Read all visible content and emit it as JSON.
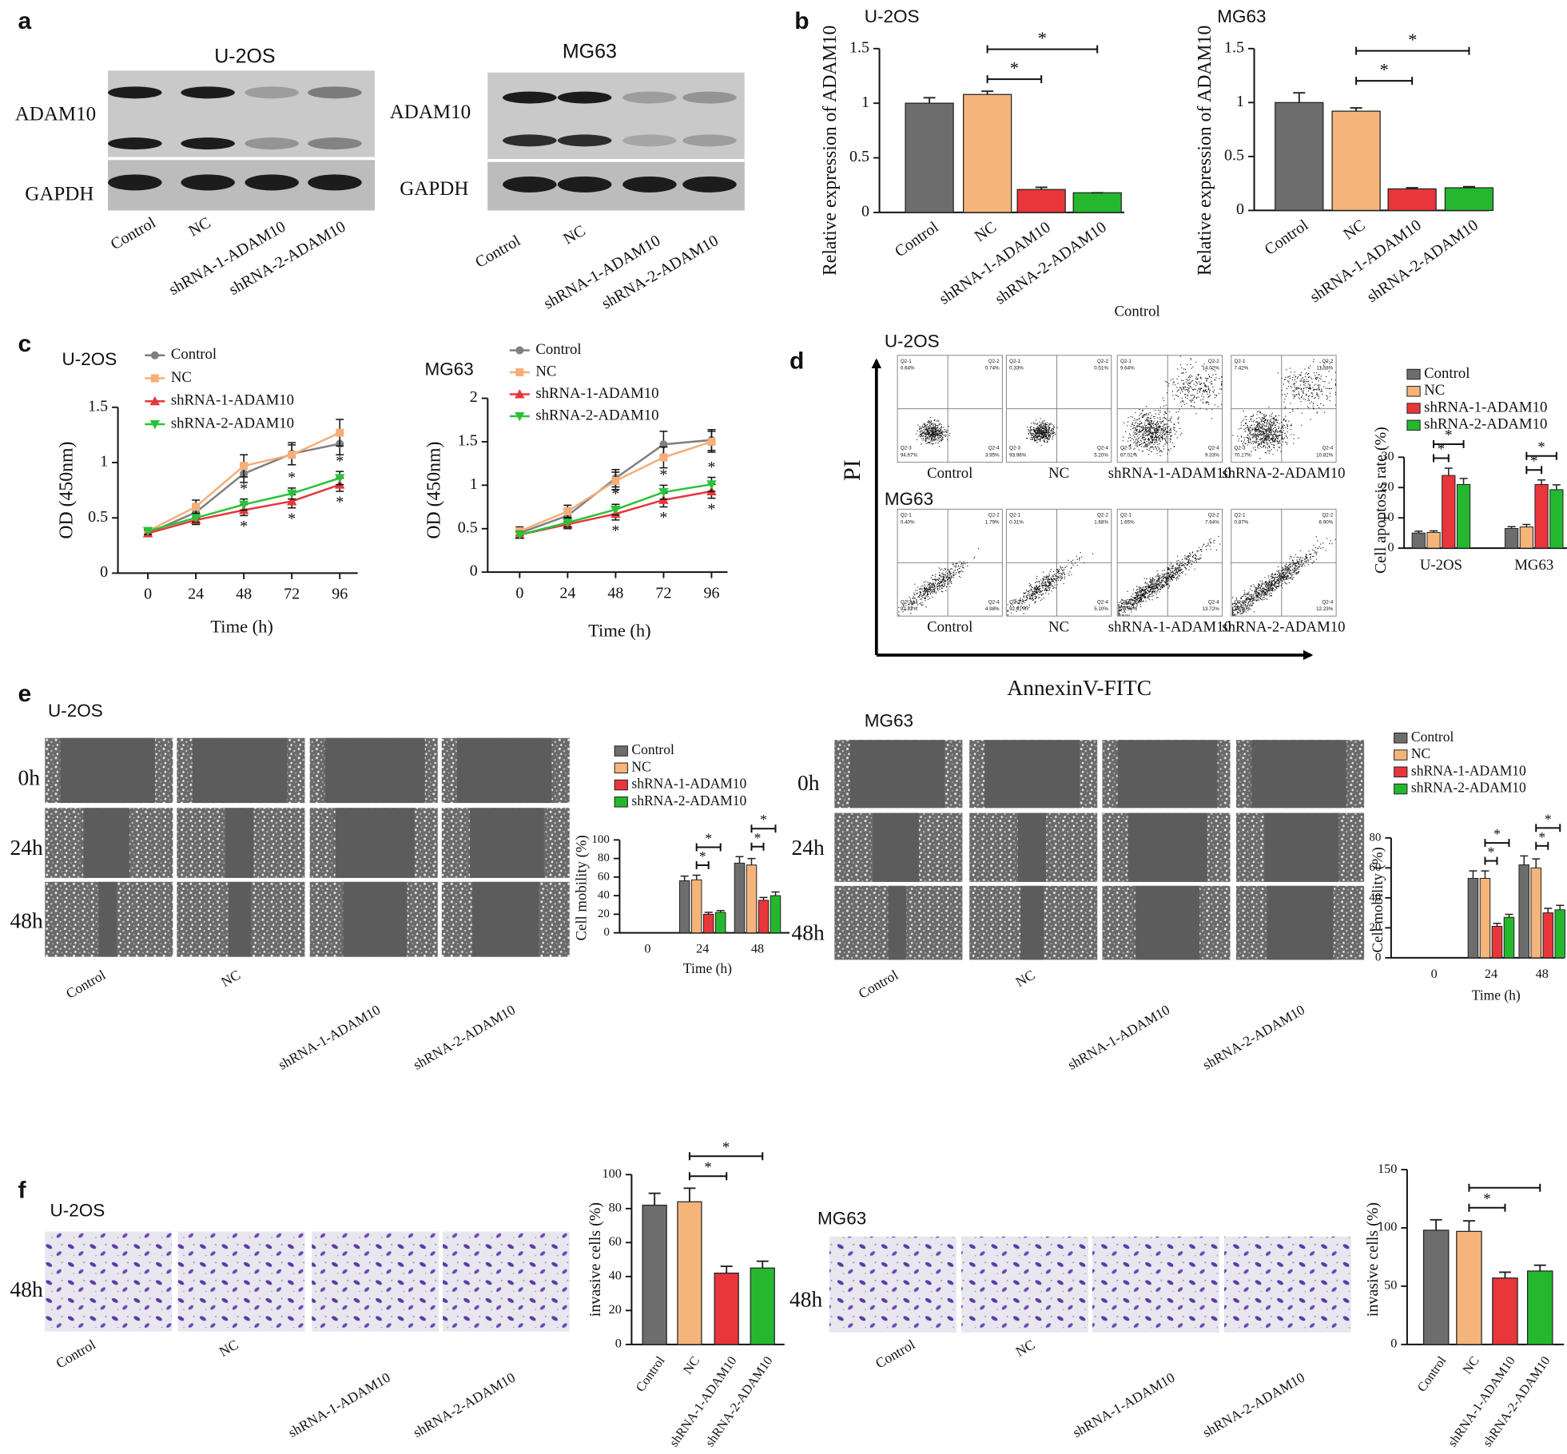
{
  "panel_labels": [
    "a",
    "b",
    "c",
    "d",
    "e",
    "f"
  ],
  "western_blot": [
    {
      "title": "U-2OS",
      "proteins": [
        "ADAM10",
        "GAPDH"
      ],
      "lanes": [
        "Control",
        "NC",
        "shRNA-1-ADAM10",
        "shRNA-2-ADAM10"
      ]
    },
    {
      "title": "MG63",
      "proteins": [
        "ADAM10",
        "GAPDH"
      ],
      "lanes": [
        "Control",
        "NC",
        "shRNA-1-ADAM10",
        "shRNA-2-ADAM10"
      ]
    }
  ],
  "stray_label": "Control",
  "flow_cytometry": {
    "y_label": "PI",
    "x_label": "AnnexinV-FITC",
    "rows": [
      {
        "title": "U-2OS",
        "plots": [
          {
            "label": "Control",
            "quadrants": [
              {
                "name": "Q2-1",
                "value": "0.64%"
              },
              {
                "name": "Q2-2",
                "value": "0.74%"
              },
              {
                "name": "Q2-3",
                "value": "94.67%"
              },
              {
                "name": "Q2-4",
                "value": "3.95%"
              }
            ]
          },
          {
            "label": "NC",
            "quadrants": [
              {
                "name": "Q2-1",
                "value": "0.33%"
              },
              {
                "name": "Q2-2",
                "value": "0.51%"
              },
              {
                "name": "Q2-3",
                "value": "93.96%"
              },
              {
                "name": "Q2-4",
                "value": "5.20%"
              }
            ]
          },
          {
            "label": "shRNA-1-ADAM10",
            "quadrants": [
              {
                "name": "Q2-1",
                "value": "9.64%"
              },
              {
                "name": "Q2-2",
                "value": "14.02%"
              },
              {
                "name": "Q2-3",
                "value": "67.01%"
              },
              {
                "name": "Q2-4",
                "value": "9.33%"
              }
            ]
          },
          {
            "label": "shRNA-2-ADAM10",
            "quadrants": [
              {
                "name": "Q2-1",
                "value": "7.42%"
              },
              {
                "name": "Q2-2",
                "value": "11.58%"
              },
              {
                "name": "Q2-3",
                "value": "70.17%"
              },
              {
                "name": "Q2-4",
                "value": "10.82%"
              }
            ]
          }
        ]
      },
      {
        "title": "MG63",
        "plots": [
          {
            "label": "Control",
            "quadrants": [
              {
                "name": "Q2-1",
                "value": "0.40%"
              },
              {
                "name": "Q2-2",
                "value": "1.79%"
              },
              {
                "name": "Q2-3",
                "value": "92.82%"
              },
              {
                "name": "Q2-4",
                "value": "4.98%"
              }
            ]
          },
          {
            "label": "NC",
            "quadrants": [
              {
                "name": "Q2-1",
                "value": "0.31%"
              },
              {
                "name": "Q2-2",
                "value": "1.68%"
              },
              {
                "name": "Q2-3",
                "value": "92.91%"
              },
              {
                "name": "Q2-4",
                "value": "5.10%"
              }
            ]
          },
          {
            "label": "shRNA-1-ADAM10",
            "quadrants": [
              {
                "name": "Q2-1",
                "value": "1.65%"
              },
              {
                "name": "Q2-2",
                "value": "7.64%"
              },
              {
                "name": "Q2-3",
                "value": "76.98%"
              },
              {
                "name": "Q2-4",
                "value": "13.72%"
              }
            ]
          },
          {
            "label": "shRNA-2-ADAM10",
            "quadrants": [
              {
                "name": "Q2-1",
                "value": "0.87%"
              },
              {
                "name": "Q2-2",
                "value": "6.90%"
              },
              {
                "name": "Q2-3",
                "value": "79.90%"
              },
              {
                "name": "Q2-4",
                "value": "12.23%"
              }
            ]
          }
        ]
      }
    ]
  },
  "wound_healing": [
    {
      "title": "U-2OS",
      "times": [
        "0h",
        "24h",
        "48h"
      ],
      "lanes": [
        "Control",
        "NC",
        "shRNA-1-ADAM10",
        "shRNA-2-ADAM10"
      ]
    },
    {
      "title": "MG63",
      "times": [
        "0h",
        "24h",
        "48h"
      ],
      "lanes": [
        "Control",
        "NC",
        "shRNA-1-ADAM10",
        "shRNA-2-ADAM10"
      ]
    }
  ],
  "transwell": [
    {
      "title": "U-2OS",
      "time": "48h",
      "lanes": [
        "Control",
        "NC",
        "shRNA-1-ADAM10",
        "shRNA-2-ADAM10"
      ]
    },
    {
      "title": "MG63",
      "time": "48h",
      "lanes": [
        "Control",
        "NC",
        "shRNA-1-ADAM10",
        "shRNA-2-ADAM10"
      ]
    }
  ],
  "chart_data": [
    {
      "type": "bar",
      "title": "U-2OS",
      "y_label": "Relative expression of ADAM10",
      "categories": [
        "Control",
        "NC",
        "shRNA-1-ADAM10",
        "shRNA-2-ADAM10"
      ],
      "values": [
        1.0,
        1.08,
        0.21,
        0.18
      ],
      "errors": [
        0.05,
        0.03,
        0.02,
        0.0
      ],
      "colors": [
        "#6d6d6d",
        "#f4b47a",
        "#e8363b",
        "#25b82f"
      ],
      "ylim": [
        0,
        1.5
      ],
      "yticks": [
        0,
        0.5,
        1,
        1.5
      ],
      "significance": [
        {
          "between": [
            1,
            2
          ],
          "label": "*"
        },
        {
          "between": [
            1,
            3
          ],
          "label": "*"
        }
      ]
    },
    {
      "type": "bar",
      "title": "MG63",
      "y_label": "Relative expression of ADAM10",
      "categories": [
        "Control",
        "NC",
        "shRNA-1-ADAM10",
        "shRNA-2-ADAM10"
      ],
      "values": [
        1.0,
        0.92,
        0.2,
        0.21
      ],
      "errors": [
        0.09,
        0.03,
        0.01,
        0.01
      ],
      "colors": [
        "#6d6d6d",
        "#f4b47a",
        "#e8363b",
        "#25b82f"
      ],
      "ylim": [
        0,
        1.5
      ],
      "yticks": [
        0,
        0.5,
        1,
        1.5
      ],
      "significance": [
        {
          "between": [
            1,
            2
          ],
          "label": "*"
        },
        {
          "between": [
            1,
            3
          ],
          "label": "*"
        }
      ]
    },
    {
      "type": "line",
      "title": "U-2OS",
      "x_label": "Time (h)",
      "y_label": "OD (450nm)",
      "x": [
        0,
        24,
        48,
        72,
        96
      ],
      "xlim": [
        -15,
        105
      ],
      "xticks": [
        0,
        24,
        48,
        72,
        96
      ],
      "ylim": [
        0,
        1.5
      ],
      "yticks": [
        0,
        0.5,
        1,
        1.5
      ],
      "series": [
        {
          "name": "Control",
          "color": "#7f7f7f",
          "marker": "circle",
          "values": [
            0.36,
            0.55,
            0.9,
            1.08,
            1.17
          ],
          "errors": [
            0.03,
            0.05,
            0.08,
            0.1,
            0.1
          ]
        },
        {
          "name": "NC",
          "color": "#f5ae78",
          "marker": "square",
          "values": [
            0.38,
            0.6,
            0.97,
            1.07,
            1.27
          ],
          "errors": [
            0.03,
            0.06,
            0.1,
            0.09,
            0.12
          ]
        },
        {
          "name": "shRNA-1-ADAM10",
          "color": "#e8363b",
          "marker": "triangle-up",
          "values": [
            0.36,
            0.48,
            0.57,
            0.65,
            0.8
          ],
          "errors": [
            0.03,
            0.04,
            0.05,
            0.06,
            0.06
          ]
        },
        {
          "name": "shRNA-2-ADAM10",
          "color": "#2cc23a",
          "marker": "triangle-down",
          "values": [
            0.38,
            0.5,
            0.62,
            0.72,
            0.86
          ],
          "errors": [
            0.03,
            0.04,
            0.05,
            0.05,
            0.06
          ]
        }
      ],
      "significance_marks": {
        "label": "*",
        "x": [
          48,
          72,
          96
        ]
      }
    },
    {
      "type": "line",
      "title": "MG63",
      "x_label": "Time (h)",
      "y_label": "OD (450nm)",
      "x": [
        0,
        24,
        48,
        72,
        96
      ],
      "xlim": [
        -16,
        104
      ],
      "xticks": [
        0,
        24,
        48,
        72,
        96
      ],
      "ylim": [
        0,
        2
      ],
      "yticks": [
        0,
        0.5,
        1,
        1.5,
        2
      ],
      "series": [
        {
          "name": "Control",
          "color": "#7f7f7f",
          "marker": "circle",
          "values": [
            0.45,
            0.65,
            1.08,
            1.47,
            1.52
          ],
          "errors": [
            0.05,
            0.07,
            0.1,
            0.15,
            0.12
          ]
        },
        {
          "name": "NC",
          "color": "#f5ae78",
          "marker": "square",
          "values": [
            0.47,
            0.7,
            1.05,
            1.32,
            1.5
          ],
          "errors": [
            0.05,
            0.07,
            0.1,
            0.12,
            0.12
          ]
        },
        {
          "name": "shRNA-1-ADAM10",
          "color": "#e8363b",
          "marker": "triangle-up",
          "values": [
            0.43,
            0.55,
            0.67,
            0.83,
            0.93
          ],
          "errors": [
            0.04,
            0.05,
            0.07,
            0.08,
            0.08
          ]
        },
        {
          "name": "shRNA-2-ADAM10",
          "color": "#2cc23a",
          "marker": "triangle-down",
          "values": [
            0.43,
            0.57,
            0.72,
            0.92,
            1.01
          ],
          "errors": [
            0.04,
            0.05,
            0.06,
            0.08,
            0.08
          ]
        }
      ],
      "significance_marks": {
        "label": "*",
        "x": [
          48,
          72,
          96
        ]
      }
    },
    {
      "type": "grouped_bar",
      "y_label": "Cell apoptosis rate (%)",
      "categories": [
        "U-2OS",
        "MG63"
      ],
      "ylim": [
        0,
        30
      ],
      "yticks": [
        0,
        10,
        20,
        30
      ],
      "series": [
        {
          "name": "Control",
          "color": "#6d6d6d",
          "values": [
            5,
            6.5
          ],
          "errors": [
            0.6,
            0.6
          ]
        },
        {
          "name": "NC",
          "color": "#f4b47a",
          "values": [
            5.2,
            7
          ],
          "errors": [
            0.5,
            0.8
          ]
        },
        {
          "name": "shRNA-1-ADAM10",
          "color": "#e8363b",
          "values": [
            24,
            21
          ],
          "errors": [
            2.4,
            1.5
          ]
        },
        {
          "name": "shRNA-2-ADAM10",
          "color": "#25b82f",
          "values": [
            21,
            19.3
          ],
          "errors": [
            2,
            1.6
          ]
        }
      ],
      "significance": [
        {
          "category": 0,
          "between": [
            1,
            2
          ],
          "label": "*"
        },
        {
          "category": 0,
          "between": [
            1,
            3
          ],
          "label": "*"
        },
        {
          "category": 1,
          "between": [
            1,
            2
          ],
          "label": "*"
        },
        {
          "category": 1,
          "between": [
            1,
            3
          ],
          "label": "*"
        }
      ]
    },
    {
      "type": "grouped_bar",
      "x_label": "Time (h)",
      "y_label": "Cell mobility (%)",
      "categories": [
        "0",
        "24",
        "48"
      ],
      "ylim": [
        0,
        100
      ],
      "yticks": [
        0,
        20,
        40,
        60,
        80,
        100
      ],
      "series": [
        {
          "name": "Control",
          "color": "#6d6d6d",
          "values": [
            null,
            56,
            75
          ],
          "errors": [
            null,
            5,
            7
          ]
        },
        {
          "name": "NC",
          "color": "#f4b47a",
          "values": [
            null,
            57,
            73
          ],
          "errors": [
            null,
            5,
            7
          ]
        },
        {
          "name": "shRNA-1-ADAM10",
          "color": "#e8363b",
          "values": [
            null,
            20,
            35
          ],
          "errors": [
            null,
            2,
            3
          ]
        },
        {
          "name": "shRNA-2-ADAM10",
          "color": "#25b82f",
          "values": [
            null,
            22,
            40
          ],
          "errors": [
            null,
            2,
            4
          ]
        }
      ],
      "significance": [
        {
          "category": 1,
          "between": [
            1,
            2
          ],
          "label": "*"
        },
        {
          "category": 1,
          "between": [
            1,
            3
          ],
          "label": "*"
        },
        {
          "category": 2,
          "between": [
            1,
            2
          ],
          "label": "*"
        },
        {
          "category": 2,
          "between": [
            1,
            3
          ],
          "label": "*"
        }
      ]
    },
    {
      "type": "grouped_bar",
      "x_label": "Time (h)",
      "y_label": "Cell mobility (%)",
      "categories": [
        "0",
        "24",
        "48"
      ],
      "ylim": [
        0,
        80
      ],
      "yticks": [
        0,
        20,
        40,
        60,
        80
      ],
      "series": [
        {
          "name": "Control",
          "color": "#6d6d6d",
          "values": [
            null,
            53,
            62
          ],
          "errors": [
            null,
            5,
            6
          ]
        },
        {
          "name": "NC",
          "color": "#f4b47a",
          "values": [
            null,
            53,
            60
          ],
          "errors": [
            null,
            5,
            6
          ]
        },
        {
          "name": "shRNA-1-ADAM10",
          "color": "#e8363b",
          "values": [
            null,
            21,
            30
          ],
          "errors": [
            null,
            2,
            3
          ]
        },
        {
          "name": "shRNA-2-ADAM10",
          "color": "#25b82f",
          "values": [
            null,
            27,
            32
          ],
          "errors": [
            null,
            2,
            3
          ]
        }
      ],
      "significance": [
        {
          "category": 1,
          "between": [
            1,
            2
          ],
          "label": "*"
        },
        {
          "category": 1,
          "between": [
            1,
            3
          ],
          "label": "*"
        },
        {
          "category": 2,
          "between": [
            1,
            2
          ],
          "label": "*"
        },
        {
          "category": 2,
          "between": [
            1,
            3
          ],
          "label": "*"
        }
      ]
    },
    {
      "type": "bar",
      "y_label": "invasive cells (%)",
      "categories": [
        "Control",
        "NC",
        "shRNA-1-ADAM10",
        "shRNA-2-ADAM10"
      ],
      "values": [
        82,
        84,
        42,
        45
      ],
      "errors": [
        7,
        8,
        4,
        4
      ],
      "colors": [
        "#6d6d6d",
        "#f4b47a",
        "#e8363b",
        "#25b82f"
      ],
      "ylim": [
        0,
        100
      ],
      "yticks": [
        0,
        20,
        40,
        60,
        80,
        100
      ],
      "significance": [
        {
          "between": [
            1,
            2
          ],
          "label": "*"
        },
        {
          "between": [
            1,
            3
          ],
          "label": "*"
        }
      ]
    },
    {
      "type": "bar",
      "y_label": "invasive cells (%)",
      "categories": [
        "Control",
        "NC",
        "shRNA-1-ADAM10",
        "shRNA-2-ADAM10"
      ],
      "values": [
        98,
        97,
        57,
        63
      ],
      "errors": [
        9,
        9,
        5,
        5
      ],
      "colors": [
        "#6d6d6d",
        "#f4b47a",
        "#e8363b",
        "#25b82f"
      ],
      "ylim": [
        0,
        150
      ],
      "yticks": [
        0,
        50,
        100,
        150
      ],
      "significance": [
        {
          "between": [
            1,
            2
          ],
          "label": "*"
        },
        {
          "between": [
            1,
            3
          ]
        }
      ]
    }
  ]
}
